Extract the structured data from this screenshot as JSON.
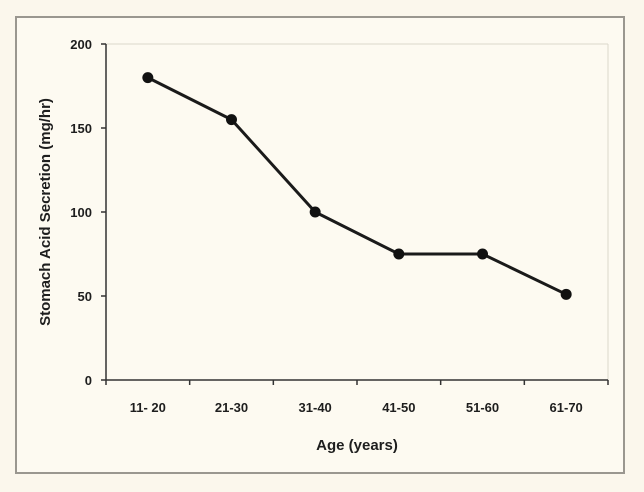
{
  "chart_data": {
    "type": "line",
    "title": "",
    "xlabel": "Age (years)",
    "ylabel": "Stomach Acid Secretion (mg/hr)",
    "categories": [
      "11- 20",
      "21-30",
      "31-40",
      "41-50",
      "51-60",
      "61-70"
    ],
    "series": [
      {
        "values": [
          180,
          155,
          100,
          75,
          75,
          51
        ]
      }
    ],
    "ylim": [
      0,
      200
    ],
    "yticks": [
      0,
      50,
      100,
      150,
      200
    ],
    "grid": false,
    "legend": "none",
    "colors": {
      "line": "#1a1a1a",
      "marker": "#111111",
      "axis": "#333333",
      "plot_background": "#fdfaf1"
    }
  }
}
